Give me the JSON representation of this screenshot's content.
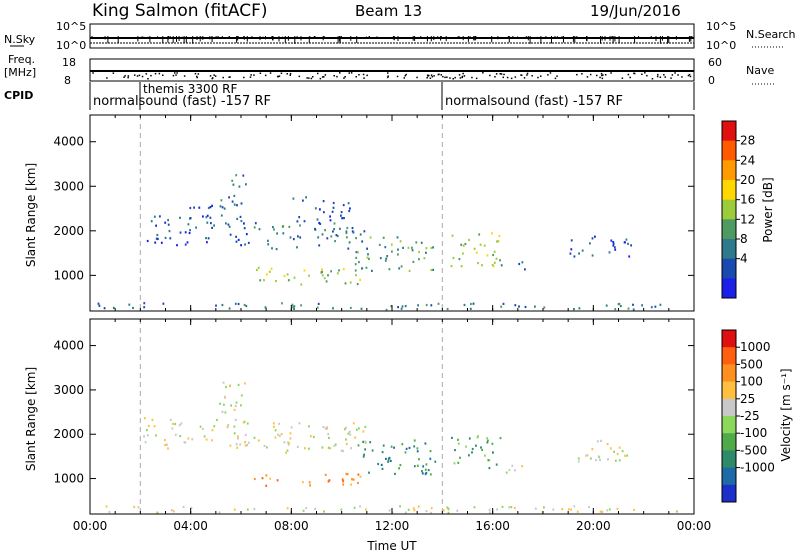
{
  "header": {
    "station": "King Salmon (fitACF)",
    "beam": "Beam 13",
    "date": "19/Jun/2016"
  },
  "strips": {
    "nsky_label": "N.Sky",
    "nsky_ticks": [
      "10^5",
      "10^0"
    ],
    "nsearch_label": "N.Search",
    "nsearch_ticks": [
      "10^5",
      "10^0"
    ],
    "freq_label_1": "Freq.",
    "freq_label_2": "[MHz]",
    "freq_ticks": [
      "18",
      "8"
    ],
    "nave_label": "Nave",
    "nave_ticks": [
      "60",
      "0"
    ],
    "cpid_label": "CPID",
    "cpid_segments": [
      "normalsound (fast) -157 RF",
      "themis 3300 RF",
      "normalsound (fast) -157 RF"
    ]
  },
  "chart_data": [
    {
      "type": "heatmap",
      "name": "Power",
      "ylabel": "Slant Range [km]",
      "xlabel": "Time UT",
      "x_range_hours": [
        0,
        24
      ],
      "ylim": [
        200,
        4600
      ],
      "y_ticks": [
        "4000",
        "3000",
        "2000",
        "1000"
      ],
      "x_ticks": [
        "00:00",
        "04:00",
        "08:00",
        "12:00",
        "16:00",
        "20:00",
        "00:00"
      ],
      "colorbar_label": "Power [dB]",
      "colorbar_ticks": [
        "28",
        "24",
        "20",
        "16",
        "12",
        "8",
        "4"
      ],
      "colors": [
        "#1a20e8",
        "#1a4ab0",
        "#2f7a8a",
        "#4f9a60",
        "#9ccc3a",
        "#ffd800",
        "#ff9a00",
        "#ff5a00",
        "#e01010"
      ],
      "vertical_markers_hours": [
        2.0,
        14.0
      ],
      "clusters": [
        {
          "t0": 0.3,
          "t1": 23.7,
          "r0": 250,
          "r1": 400,
          "level": 2
        },
        {
          "t0": 2.1,
          "t1": 6.3,
          "r0": 1700,
          "r1": 2400,
          "level": 1
        },
        {
          "t0": 3.3,
          "t1": 4.9,
          "r0": 2300,
          "r1": 2600,
          "level": 1
        },
        {
          "t0": 5.1,
          "t1": 6.2,
          "r0": 2500,
          "r1": 3300,
          "level": 2
        },
        {
          "t0": 6.5,
          "t1": 11.0,
          "r0": 1600,
          "r1": 2200,
          "level": 2
        },
        {
          "t0": 6.5,
          "t1": 10.8,
          "r0": 800,
          "r1": 1200,
          "level": 4
        },
        {
          "t0": 8.0,
          "t1": 10.3,
          "r0": 2200,
          "r1": 2800,
          "level": 1
        },
        {
          "t0": 10.5,
          "t1": 13.8,
          "r0": 1100,
          "r1": 1900,
          "level": 3
        },
        {
          "t0": 14.3,
          "t1": 16.3,
          "r0": 1200,
          "r1": 2000,
          "level": 4
        },
        {
          "t0": 16.2,
          "t1": 17.3,
          "r0": 1150,
          "r1": 1350,
          "level": 2
        },
        {
          "t0": 19.0,
          "t1": 21.5,
          "r0": 1400,
          "r1": 1900,
          "level": 1
        }
      ]
    },
    {
      "type": "heatmap",
      "name": "Velocity",
      "ylabel": "Slant Range [km]",
      "xlabel": "Time UT",
      "x_range_hours": [
        0,
        24
      ],
      "ylim": [
        200,
        4600
      ],
      "y_ticks": [
        "4000",
        "3000",
        "2000",
        "1000"
      ],
      "x_ticks": [
        "00:00",
        "04:00",
        "08:00",
        "12:00",
        "16:00",
        "20:00",
        "00:00"
      ],
      "colorbar_label": "Velocity [m s⁻¹]",
      "colorbar_ticks": [
        "1000",
        "500",
        "100",
        "25",
        "-25",
        "-100",
        "-500",
        "-1000"
      ],
      "colors": [
        "#1a30c8",
        "#1e6aa8",
        "#2f8a6a",
        "#4faa4a",
        "#8cd85a",
        "#c8c8c8",
        "#ffc040",
        "#ff9020",
        "#ff6010",
        "#e01010"
      ],
      "vertical_markers_hours": [
        2.0,
        14.0
      ],
      "clusters": [
        {
          "t0": 0.3,
          "t1": 23.7,
          "r0": 250,
          "r1": 400,
          "level": 5
        },
        {
          "t0": 2.1,
          "t1": 6.3,
          "r0": 1700,
          "r1": 2400,
          "level": 5
        },
        {
          "t0": 5.1,
          "t1": 6.2,
          "r0": 2500,
          "r1": 3400,
          "level": 5
        },
        {
          "t0": 6.5,
          "t1": 11.0,
          "r0": 1600,
          "r1": 2300,
          "level": 5
        },
        {
          "t0": 6.5,
          "t1": 10.8,
          "r0": 850,
          "r1": 1150,
          "level": 7
        },
        {
          "t0": 10.5,
          "t1": 13.8,
          "r0": 1100,
          "r1": 1900,
          "level": 2
        },
        {
          "t0": 14.3,
          "t1": 16.3,
          "r0": 1200,
          "r1": 2000,
          "level": 3
        },
        {
          "t0": 15.8,
          "t1": 17.3,
          "r0": 1150,
          "r1": 1350,
          "level": 5
        },
        {
          "t0": 19.0,
          "t1": 21.5,
          "r0": 1400,
          "r1": 1900,
          "level": 5
        }
      ]
    }
  ]
}
